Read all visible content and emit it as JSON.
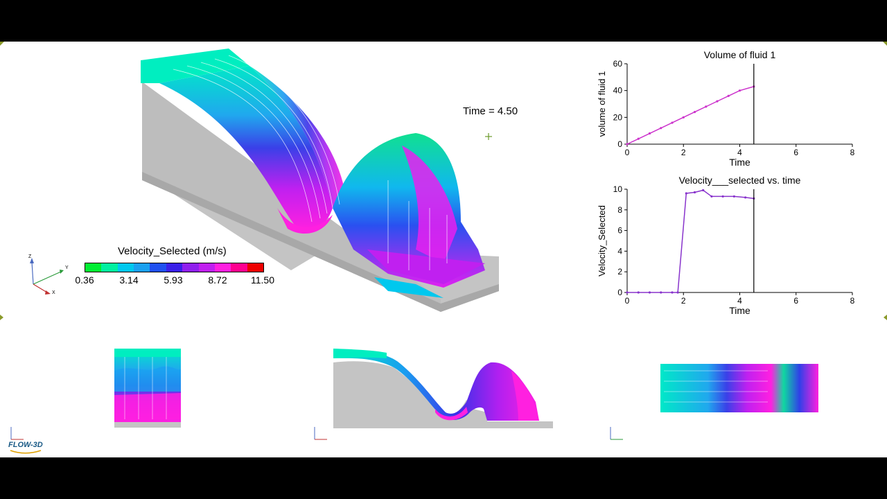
{
  "time_label": "Time = 4.50",
  "legend": {
    "title": "Velocity_Selected (m/s)",
    "ticks": [
      "0.36",
      "3.14",
      "5.93",
      "8.72",
      "11.50"
    ],
    "colors": [
      "#00ee33",
      "#00f0a0",
      "#00c8ee",
      "#1aa0f0",
      "#2050f0",
      "#3a20e8",
      "#9020ee",
      "#c020f0",
      "#ff20e0",
      "#ff0090",
      "#ee0000"
    ]
  },
  "axis_triad": {
    "z": "Z",
    "y": "Y",
    "x": "X"
  },
  "logo": "FLOW-3D",
  "chart_data": [
    {
      "type": "line",
      "title": "Volume of fluid 1",
      "xlabel": "Time",
      "ylabel": "volume of fluid 1",
      "xlim": [
        0,
        8
      ],
      "ylim": [
        0,
        60
      ],
      "xticks": [
        "0",
        "2",
        "4",
        "6",
        "8"
      ],
      "yticks": [
        "0",
        "20",
        "40",
        "60"
      ],
      "x": [
        0,
        0.4,
        0.8,
        1.2,
        1.6,
        2.0,
        2.4,
        2.8,
        3.2,
        3.6,
        4.0,
        4.5
      ],
      "y": [
        0,
        4,
        8,
        12,
        16,
        20,
        24,
        28,
        32,
        36,
        40,
        43
      ],
      "marker_time": 4.5,
      "color": "#cc33cc"
    },
    {
      "type": "line",
      "title": "Velocity___selected vs. time",
      "xlabel": "Time",
      "ylabel": "Velocity_Selected",
      "xlim": [
        0,
        8
      ],
      "ylim": [
        0,
        10
      ],
      "xticks": [
        "0",
        "2",
        "4",
        "6",
        "8"
      ],
      "yticks": [
        "0",
        "2",
        "4",
        "6",
        "8",
        "10"
      ],
      "x": [
        0,
        0.4,
        0.8,
        1.2,
        1.6,
        1.8,
        2.1,
        2.4,
        2.7,
        3.0,
        3.4,
        3.8,
        4.2,
        4.5
      ],
      "y": [
        0,
        0,
        0,
        0,
        0,
        0,
        9.6,
        9.7,
        9.9,
        9.3,
        9.3,
        9.3,
        9.2,
        9.1
      ],
      "marker_time": 4.5,
      "color": "#8833cc"
    }
  ]
}
